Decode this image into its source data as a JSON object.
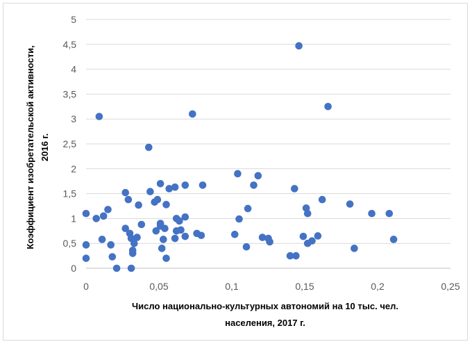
{
  "chart_data": {
    "type": "scatter",
    "xlabel": [
      "Число национально-культурных  автономий на 10 тыс. чел.",
      "населения, 2017 г."
    ],
    "ylabel": [
      "Коэффициент изобретательской активности,",
      "2016 г."
    ],
    "xlim": [
      0,
      0.25
    ],
    "ylim": [
      0,
      5
    ],
    "x_ticks": [
      "0",
      "0,05",
      "0,1",
      "0,15",
      "0,2",
      "0,25"
    ],
    "y_ticks": [
      "0",
      "0,5",
      "1",
      "1,5",
      "2",
      "2,5",
      "3",
      "3,5",
      "4",
      "4,5",
      "5"
    ],
    "grid": "horizontal",
    "marker_color": "#4472c4",
    "points": [
      [
        0.0,
        1.1
      ],
      [
        0.0,
        0.47
      ],
      [
        0.0,
        0.2
      ],
      [
        0.007,
        1.0
      ],
      [
        0.009,
        3.05
      ],
      [
        0.012,
        1.05
      ],
      [
        0.011,
        0.58
      ],
      [
        0.015,
        1.18
      ],
      [
        0.017,
        0.47
      ],
      [
        0.018,
        0.23
      ],
      [
        0.021,
        0.0
      ],
      [
        0.027,
        1.52
      ],
      [
        0.029,
        1.38
      ],
      [
        0.027,
        0.8
      ],
      [
        0.03,
        0.7
      ],
      [
        0.031,
        0.6
      ],
      [
        0.031,
        0.0
      ],
      [
        0.032,
        0.36
      ],
      [
        0.032,
        0.3
      ],
      [
        0.033,
        0.5
      ],
      [
        0.035,
        0.62
      ],
      [
        0.036,
        1.27
      ],
      [
        0.038,
        0.88
      ],
      [
        0.043,
        2.43
      ],
      [
        0.044,
        1.54
      ],
      [
        0.047,
        1.33
      ],
      [
        0.049,
        1.38
      ],
      [
        0.048,
        0.75
      ],
      [
        0.051,
        1.7
      ],
      [
        0.051,
        0.9
      ],
      [
        0.051,
        0.85
      ],
      [
        0.052,
        0.4
      ],
      [
        0.053,
        0.58
      ],
      [
        0.054,
        0.8
      ],
      [
        0.055,
        1.28
      ],
      [
        0.055,
        0.2
      ],
      [
        0.057,
        1.6
      ],
      [
        0.061,
        1.63
      ],
      [
        0.061,
        0.6
      ],
      [
        0.062,
        1.0
      ],
      [
        0.062,
        0.75
      ],
      [
        0.064,
        0.95
      ],
      [
        0.065,
        0.77
      ],
      [
        0.068,
        1.67
      ],
      [
        0.068,
        1.03
      ],
      [
        0.068,
        0.64
      ],
      [
        0.073,
        3.1
      ],
      [
        0.076,
        0.7
      ],
      [
        0.079,
        0.66
      ],
      [
        0.08,
        1.67
      ],
      [
        0.102,
        0.68
      ],
      [
        0.104,
        1.9
      ],
      [
        0.105,
        0.99
      ],
      [
        0.11,
        0.43
      ],
      [
        0.111,
        1.2
      ],
      [
        0.115,
        1.67
      ],
      [
        0.118,
        1.86
      ],
      [
        0.121,
        0.62
      ],
      [
        0.125,
        0.6
      ],
      [
        0.126,
        0.53
      ],
      [
        0.14,
        0.25
      ],
      [
        0.143,
        1.6
      ],
      [
        0.144,
        0.25
      ],
      [
        0.146,
        4.47
      ],
      [
        0.149,
        0.64
      ],
      [
        0.151,
        1.21
      ],
      [
        0.152,
        0.5
      ],
      [
        0.152,
        1.1
      ],
      [
        0.155,
        0.55
      ],
      [
        0.159,
        0.65
      ],
      [
        0.162,
        1.38
      ],
      [
        0.166,
        3.25
      ],
      [
        0.181,
        1.29
      ],
      [
        0.184,
        0.4
      ],
      [
        0.196,
        1.1
      ],
      [
        0.208,
        1.1
      ],
      [
        0.211,
        0.58
      ]
    ]
  }
}
